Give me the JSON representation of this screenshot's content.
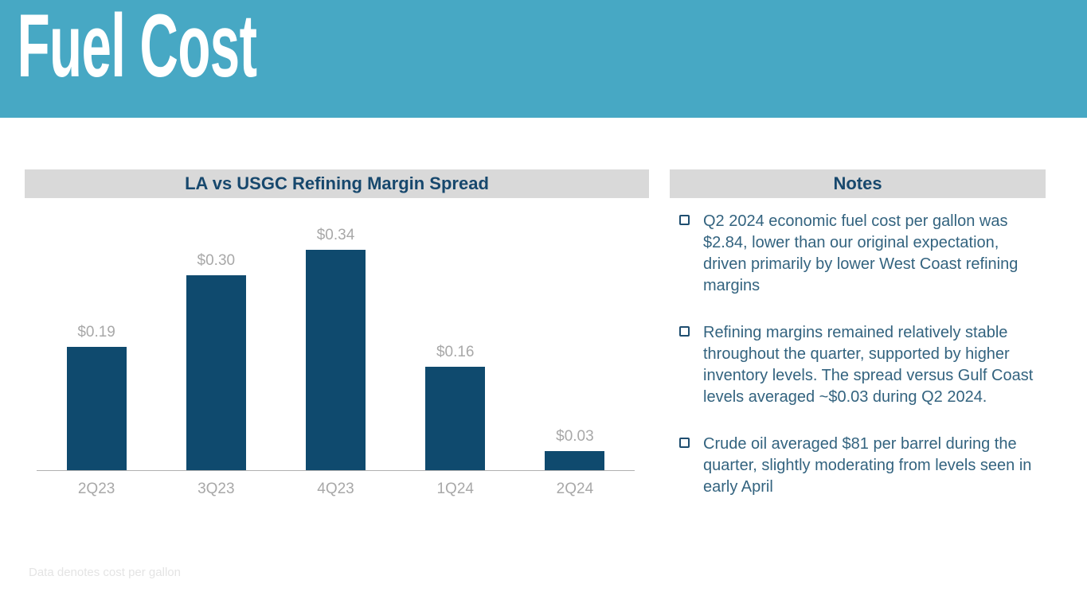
{
  "header": {
    "title": "Fuel Cost",
    "background_color": "#47A8C4"
  },
  "chart_data": {
    "type": "bar",
    "title": "LA vs USGC Refining Margin Spread",
    "categories": [
      "2Q23",
      "3Q23",
      "4Q23",
      "1Q24",
      "2Q24"
    ],
    "values": [
      0.19,
      0.3,
      0.34,
      0.16,
      0.03
    ],
    "data_labels": [
      "$0.19",
      "$0.30",
      "$0.34",
      "$0.16",
      "$0.03"
    ],
    "xlabel": "",
    "ylabel": "",
    "ylim": [
      0,
      0.38
    ],
    "grid": false,
    "legend": false,
    "bar_color": "#0F4A6E",
    "data_label_color": "#A8A8A8",
    "axis_line_color": "#B0B0B0"
  },
  "notes": {
    "title": "Notes",
    "items": [
      "Q2 2024 economic fuel cost per gallon was $2.84, lower than our original expectation, driven primarily by lower West Coast refining margins",
      "Refining margins remained relatively stable throughout the quarter, supported by higher inventory levels. The spread versus Gulf Coast levels averaged ~$0.03 during Q2 2024.",
      "Crude oil averaged $81 per barrel during the quarter, slightly moderating from levels seen in early April"
    ]
  },
  "footnote": "Data denotes cost per gallon",
  "colors": {
    "banner_teal": "#47A8C4",
    "bar_navy": "#0F4A6E",
    "panel_header_gray": "#D9D9D9",
    "heading_navy": "#17486D",
    "note_text_blue": "#33637F",
    "label_gray": "#A8A8A8"
  }
}
